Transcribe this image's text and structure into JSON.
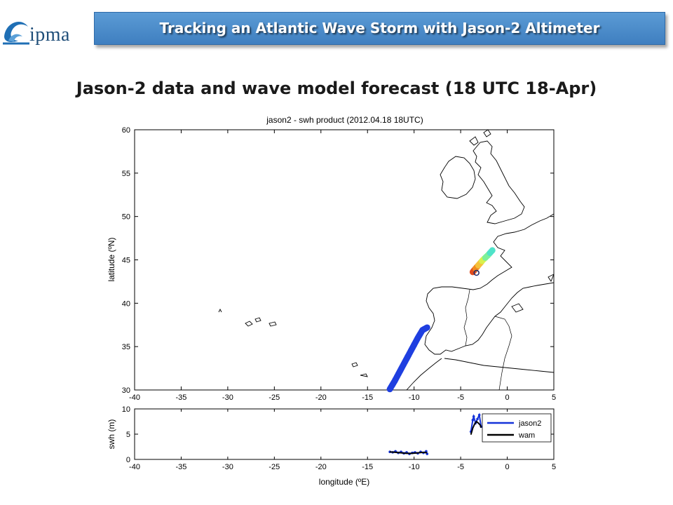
{
  "header": {
    "logo_text": "ipma",
    "title": "Tracking an Atlantic Wave Storm with Jason-2 Altimeter"
  },
  "slide": {
    "heading": "Jason-2 data and wave model forecast (18 UTC 18-Apr)"
  },
  "colors": {
    "banner": "#4f8fcd",
    "track_south": "#1f3fe0",
    "swh_jason2": "#1533d9",
    "swh_wam": "#000000",
    "north_track_gradient": [
      "#e14b1c",
      "#f08a1f",
      "#f5c13a",
      "#d8f04e",
      "#7df09a",
      "#4fe3c9"
    ]
  },
  "chart_data": [
    {
      "type": "scatter",
      "title": "jason2 - swh product (2012.04.18 18UTC)",
      "xlabel": "",
      "ylabel": "latitude (ºN)",
      "xlim": [
        -40,
        5
      ],
      "ylim": [
        30,
        60
      ],
      "x_ticks": [
        "-40",
        "-35",
        "-30",
        "-25",
        "-20",
        "-15",
        "-10",
        "-5",
        "0",
        "5"
      ],
      "y_ticks": [
        "30",
        "35",
        "40",
        "45",
        "50",
        "55",
        "60"
      ],
      "grid": false,
      "series": [
        {
          "segment": "south_track",
          "points": [
            [
              -12.6,
              30.1
            ],
            [
              -12.1,
              31.0
            ],
            [
              -11.6,
              32.0
            ],
            [
              -11.1,
              33.0
            ],
            [
              -10.6,
              34.0
            ],
            [
              -10.1,
              35.0
            ],
            [
              -9.6,
              36.0
            ],
            [
              -9.1,
              36.9
            ],
            [
              -8.6,
              37.2
            ]
          ]
        },
        {
          "segment": "north_track",
          "points": [
            [
              -3.7,
              43.6
            ],
            [
              -3.4,
              44.0
            ],
            [
              -3.0,
              44.5
            ],
            [
              -2.6,
              45.0
            ],
            [
              -2.1,
              45.5
            ],
            [
              -1.6,
              46.1
            ]
          ]
        }
      ],
      "annotations": [
        {
          "type": "open_circle",
          "x": -3.3,
          "y": 43.5
        }
      ]
    },
    {
      "type": "line",
      "title": "",
      "xlabel": "longitude (ºE)",
      "ylabel": "swh (m)",
      "xlim": [
        -40,
        5
      ],
      "ylim": [
        0,
        10
      ],
      "x_ticks": [
        "-40",
        "-35",
        "-30",
        "-25",
        "-20",
        "-15",
        "-10",
        "-5",
        "0",
        "5"
      ],
      "y_ticks": [
        "0",
        "5",
        "10"
      ],
      "legend": {
        "placement": "top-right",
        "entries": [
          "jason2",
          "wam"
        ]
      },
      "series": [
        {
          "name": "jason2",
          "x": [
            -12.6,
            -12.3,
            -12.0,
            -11.7,
            -11.4,
            -11.1,
            -10.8,
            -10.5,
            -10.2,
            -9.9,
            -9.6,
            -9.3,
            -9.0,
            -8.7,
            -8.6
          ],
          "y": [
            1.5,
            1.4,
            1.6,
            1.3,
            1.5,
            1.2,
            1.4,
            1.1,
            1.3,
            1.4,
            1.2,
            1.5,
            1.3,
            1.6,
            1.1
          ]
        },
        {
          "name": "wam",
          "x": [
            -12.6,
            -12.0,
            -11.4,
            -10.8,
            -10.2,
            -9.6,
            -9.0,
            -8.6
          ],
          "y": [
            1.5,
            1.4,
            1.3,
            1.2,
            1.2,
            1.3,
            1.4,
            1.3
          ]
        },
        {
          "name": "jason2",
          "x": [
            -3.9,
            -3.7,
            -3.6,
            -3.4,
            -3.2,
            -3.0,
            -2.8
          ],
          "y": [
            5.5,
            7.8,
            8.5,
            7.2,
            8.0,
            8.8,
            6.5
          ]
        },
        {
          "name": "wam",
          "x": [
            -3.9,
            -3.7,
            -3.5,
            -3.3,
            -3.1,
            -2.9,
            -2.8
          ],
          "y": [
            4.9,
            6.2,
            7.0,
            7.5,
            7.2,
            6.8,
            6.3
          ]
        }
      ]
    }
  ]
}
